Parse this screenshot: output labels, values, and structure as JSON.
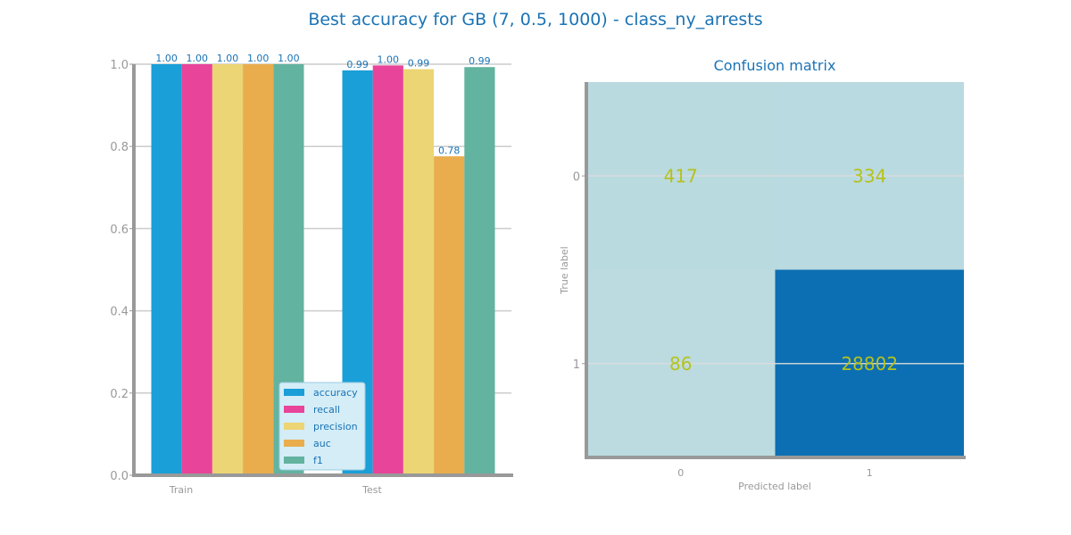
{
  "title": "Best accuracy for GB (7, 0.5, 1000) - class_ny_arrests",
  "colors": {
    "title": "#1a73b5",
    "axis": "#999999",
    "grid": "#cccccc",
    "tick_text": "#999999",
    "label_text": "#1a73b5",
    "legend_bg": "#d4edf7",
    "legend_border": "#9bcbe3",
    "heat_low": "#bbdbe0",
    "heat_high": "#0d6fb3",
    "cell_text": "#b5c21d"
  },
  "chart_data": [
    {
      "type": "bar",
      "categories": [
        "Train",
        "Test"
      ],
      "series": [
        {
          "name": "accuracy",
          "color": "#1a9fd8",
          "values": [
            1.0,
            0.985
          ]
        },
        {
          "name": "recall",
          "color": "#e8449a",
          "values": [
            1.0,
            0.997
          ]
        },
        {
          "name": "precision",
          "color": "#ecd574",
          "values": [
            1.0,
            0.988
          ]
        },
        {
          "name": "auc",
          "color": "#e9ad4d",
          "values": [
            1.0,
            0.776
          ]
        },
        {
          "name": "f1",
          "color": "#62b39f",
          "values": [
            1.0,
            0.993
          ]
        }
      ],
      "value_labels": [
        [
          "1.00",
          "1.00",
          "1.00",
          "1.00",
          "1.00"
        ],
        [
          "0.99",
          "1.00",
          "0.99",
          "0.78",
          "0.99"
        ]
      ],
      "ylim": [
        0,
        1
      ],
      "yticks": [
        "0.0",
        "0.2",
        "0.4",
        "0.6",
        "0.8",
        "1.0"
      ],
      "grid": true,
      "legend_placement": "lower-right"
    },
    {
      "type": "heatmap",
      "title": "Confusion matrix",
      "xlabel": "Predicted label",
      "ylabel": "True label",
      "xticks": [
        "0",
        "1"
      ],
      "yticks": [
        "0",
        "1"
      ],
      "values": [
        [
          417,
          334
        ],
        [
          86,
          28802
        ]
      ],
      "value_labels": [
        [
          "417",
          "334"
        ],
        [
          "86",
          "28802"
        ]
      ]
    }
  ]
}
